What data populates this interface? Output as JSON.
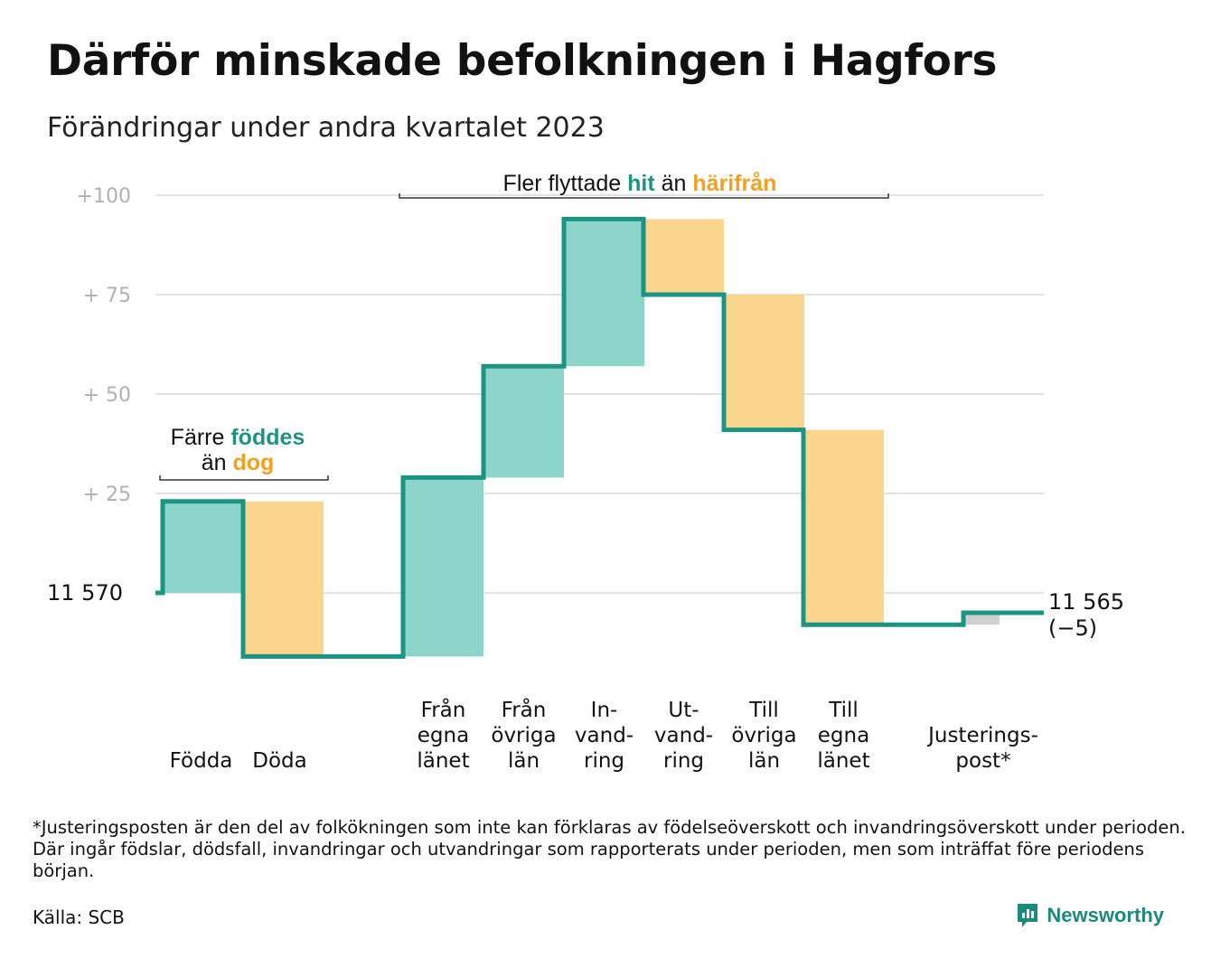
{
  "title": "Därför minskade befolkningen i Hagfors",
  "subtitle": "Förändringar under andra kvartalet 2023",
  "footnote": "*Justeringsposten är den del av folkökningen som inte kan förklaras av födelseöverskott och invandringsöverskott under perioden. Där ingår födslar, dödsfall, invandringar och utvandringar som rapporterats under perioden, men som inträffat före periodens början.",
  "source": "Källa: SCB",
  "brand": "Newsworthy",
  "colors": {
    "line": "#1b9484",
    "increase": "#8dd4cb",
    "decrease": "#fad58e",
    "adjustment": "#cfcfcf",
    "accent_teal": "#1b9484",
    "accent_orange": "#f2a11f",
    "grid": "#e2e2e2",
    "tick_text": "#b0b0b0"
  },
  "chart_data": {
    "type": "waterfall",
    "start_value": 11570,
    "start_label": "11  570",
    "end_value": 11565,
    "end_label": "11 565",
    "end_change_label": "(−5)",
    "ylim": [
      -16,
      100
    ],
    "y_ticks": [
      {
        "value": 25,
        "label": "+  25"
      },
      {
        "value": 50,
        "label": "+  50"
      },
      {
        "value": 75,
        "label": "+  75"
      },
      {
        "value": 100,
        "label": "+100"
      }
    ],
    "grid": true,
    "steps": [
      {
        "label": [
          "Födda"
        ],
        "change": 23,
        "kind": "increase"
      },
      {
        "label": [
          "Döda"
        ],
        "change": -39,
        "kind": "decrease"
      },
      {
        "label": [
          "Från",
          "egna",
          "länet"
        ],
        "change": 45,
        "kind": "increase"
      },
      {
        "label": [
          "Från",
          "övriga",
          "län"
        ],
        "change": 28,
        "kind": "increase"
      },
      {
        "label": [
          "In-",
          "vand-",
          "ring"
        ],
        "change": 37,
        "kind": "increase"
      },
      {
        "label": [
          "Ut-",
          "vand-",
          "ring"
        ],
        "change": -19,
        "kind": "decrease"
      },
      {
        "label": [
          "Till",
          "övriga",
          "län"
        ],
        "change": -34,
        "kind": "decrease"
      },
      {
        "label": [
          "Till",
          "egna",
          "länet"
        ],
        "change": -49,
        "kind": "decrease"
      },
      {
        "label": [
          "Justerings-",
          "post*"
        ],
        "change": 3,
        "kind": "adjustment"
      }
    ],
    "annotations": [
      {
        "lines": [
          [
            {
              "text": "Färre ",
              "style": "normal"
            },
            {
              "text": "föddes",
              "style": "teal"
            }
          ],
          [
            {
              "text": "än ",
              "style": "normal"
            },
            {
              "text": "dog",
              "style": "orange"
            }
          ]
        ]
      },
      {
        "lines": [
          [
            {
              "text": "Fler flyttade ",
              "style": "normal"
            },
            {
              "text": "hit",
              "style": "teal"
            },
            {
              "text": " än ",
              "style": "normal"
            },
            {
              "text": "härifrån",
              "style": "orange"
            }
          ]
        ]
      }
    ]
  }
}
